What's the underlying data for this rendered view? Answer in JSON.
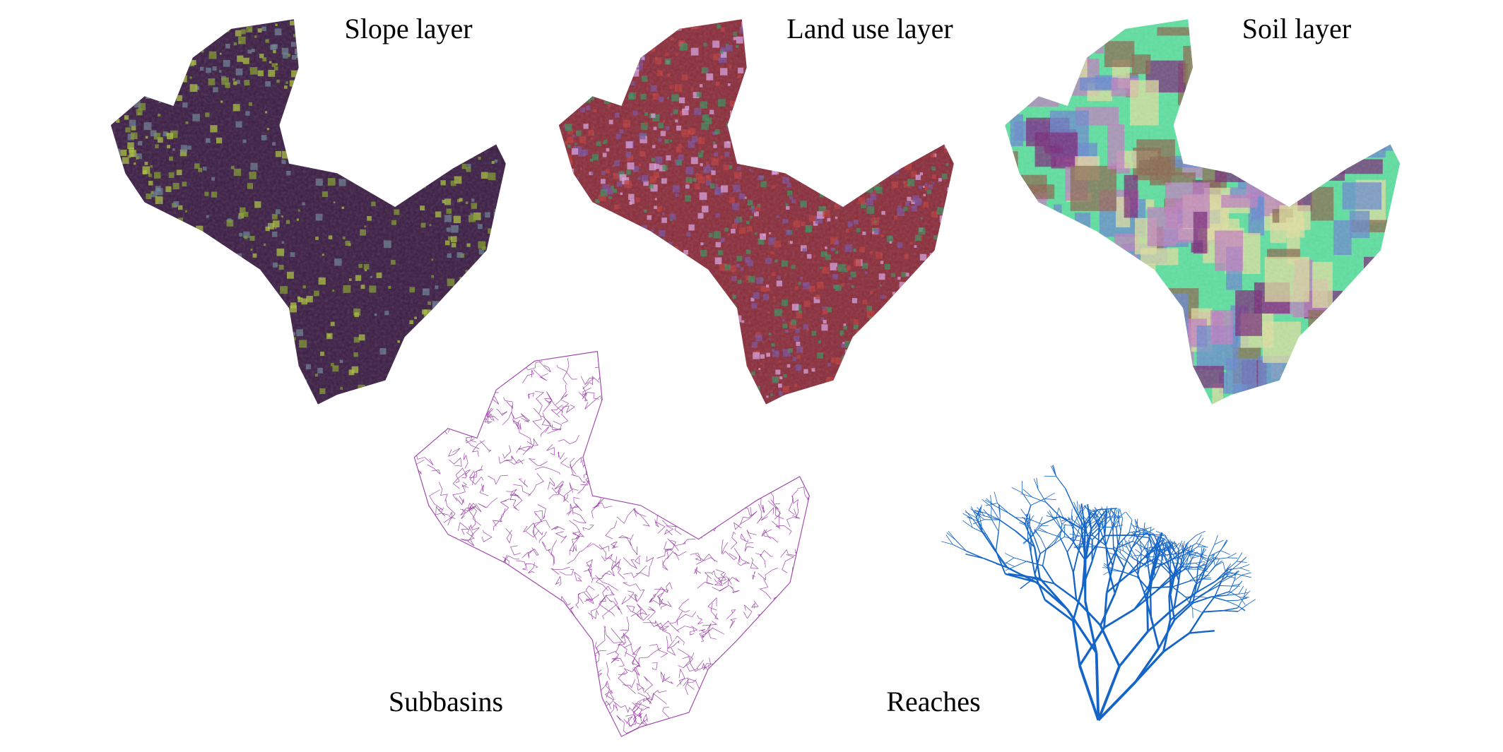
{
  "panels": [
    {
      "id": "slope",
      "label": "Slope layer",
      "style": "raster",
      "colors": [
        "#3b1d44",
        "#7f9a2a",
        "#a9c23a",
        "#6a7d8f"
      ]
    },
    {
      "id": "landuse",
      "label": "Land use layer",
      "style": "raster",
      "colors": [
        "#8a2c3a",
        "#b83a3a",
        "#3b8a5a",
        "#7a4d9a",
        "#d8a0e0"
      ]
    },
    {
      "id": "soil",
      "label": "Soil layer",
      "style": "raster",
      "colors": [
        "#5fe0a0",
        "#c080c0",
        "#8a6a50",
        "#6a8ad0",
        "#e0e0a0",
        "#7a2a7a"
      ]
    },
    {
      "id": "subbasins",
      "label": "Subbasins",
      "style": "polygons",
      "colors": [
        "#9b3fa8"
      ]
    },
    {
      "id": "reaches",
      "label": "Reaches",
      "style": "streams",
      "colors": [
        "#1565c8"
      ]
    }
  ]
}
